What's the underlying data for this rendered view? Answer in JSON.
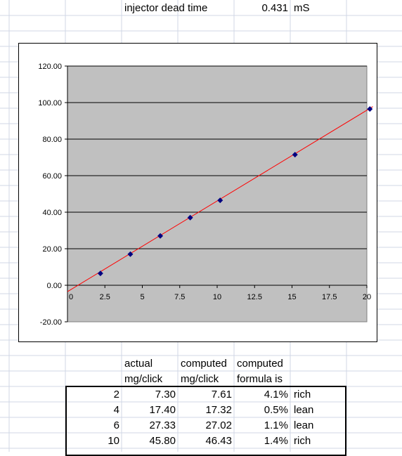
{
  "header": {
    "label": "injector dead time",
    "value": "0.431",
    "unit": "mS"
  },
  "chart_data": {
    "type": "scatter",
    "x": [
      2.2,
      4.2,
      6.2,
      8.2,
      10.2,
      15.2,
      20.2
    ],
    "y": [
      6.5,
      17.0,
      27.0,
      37.0,
      46.5,
      71.5,
      96.5
    ],
    "trendline": {
      "x": [
        0,
        20.4
      ],
      "y": [
        -3.5,
        97.8
      ]
    },
    "xlim": [
      0,
      20
    ],
    "ylim": [
      -20,
      120
    ],
    "xticks": [
      "0",
      "2.5",
      "5",
      "7.5",
      "10",
      "12.5",
      "15",
      "17.5",
      "20"
    ],
    "xtick_values": [
      0,
      2.5,
      5,
      7.5,
      10,
      12.5,
      15,
      17.5,
      20
    ],
    "yticks": [
      "120.00",
      "100.00",
      "80.00",
      "60.00",
      "40.00",
      "20.00",
      "0.00",
      "-20.00"
    ],
    "ytick_values": [
      120,
      100,
      80,
      60,
      40,
      20,
      0,
      -20
    ],
    "grid": true,
    "plot_bg": "#c0c0c0",
    "marker_color": "#000080",
    "line_color": "#ff0000",
    "title": "",
    "xlabel": "",
    "ylabel": ""
  },
  "table": {
    "headers": [
      [
        "actual",
        "mg/click"
      ],
      [
        "computed",
        "mg/click"
      ],
      [
        "computed",
        "formula is"
      ]
    ],
    "rows": [
      {
        "n": "2",
        "actual": "7.30",
        "computed": "7.61",
        "pct": "4.1%",
        "dir": "rich"
      },
      {
        "n": "4",
        "actual": "17.40",
        "computed": "17.32",
        "pct": "0.5%",
        "dir": "lean"
      },
      {
        "n": "6",
        "actual": "27.33",
        "computed": "27.02",
        "pct": "1.1%",
        "dir": "lean"
      },
      {
        "n": "10",
        "actual": "45.80",
        "computed": "46.43",
        "pct": "1.4%",
        "dir": "rich"
      }
    ]
  }
}
